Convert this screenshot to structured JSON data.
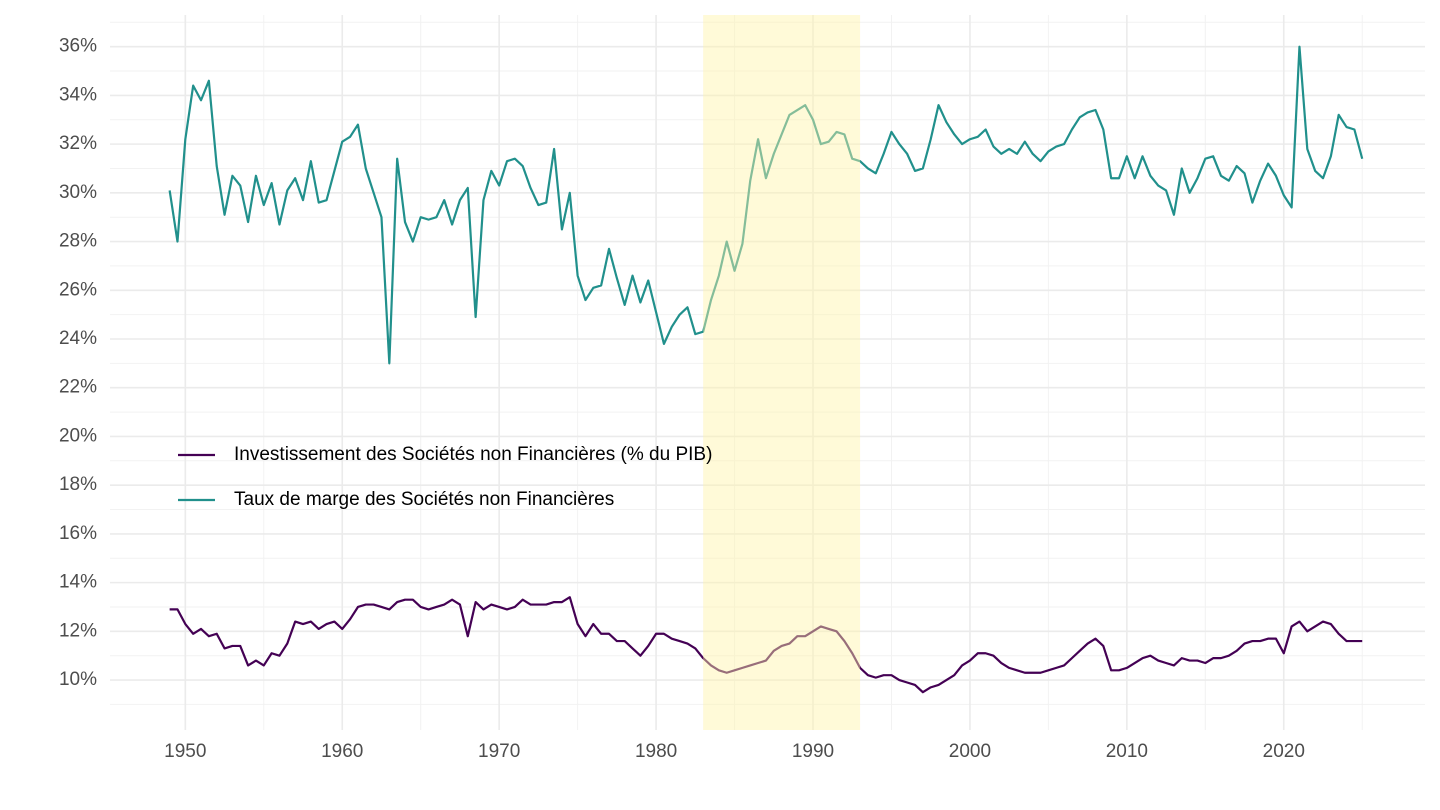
{
  "chart_data": {
    "type": "line",
    "x": [
      1949,
      1949.5,
      1950,
      1950.5,
      1951,
      1951.5,
      1952,
      1952.5,
      1953,
      1953.5,
      1954,
      1954.5,
      1955,
      1955.5,
      1956,
      1956.5,
      1957,
      1957.5,
      1958,
      1958.5,
      1959,
      1959.5,
      1960,
      1960.5,
      1961,
      1961.5,
      1962,
      1962.5,
      1963,
      1963.5,
      1964,
      1964.5,
      1965,
      1965.5,
      1966,
      1966.5,
      1967,
      1967.5,
      1968,
      1968.5,
      1969,
      1969.5,
      1970,
      1970.5,
      1971,
      1971.5,
      1972,
      1972.5,
      1973,
      1973.5,
      1974,
      1974.5,
      1975,
      1975.5,
      1976,
      1976.5,
      1977,
      1977.5,
      1978,
      1978.5,
      1979,
      1979.5,
      1980,
      1980.5,
      1981,
      1981.5,
      1982,
      1982.5,
      1983,
      1983.5,
      1984,
      1984.5,
      1985,
      1985.5,
      1986,
      1986.5,
      1987,
      1987.5,
      1988,
      1988.5,
      1989,
      1989.5,
      1990,
      1990.5,
      1991,
      1991.5,
      1992,
      1992.5,
      1993,
      1993.5,
      1994,
      1994.5,
      1995,
      1995.5,
      1996,
      1996.5,
      1997,
      1997.5,
      1998,
      1998.5,
      1999,
      1999.5,
      2000,
      2000.5,
      2001,
      2001.5,
      2002,
      2002.5,
      2003,
      2003.5,
      2004,
      2004.5,
      2005,
      2005.5,
      2006,
      2006.5,
      2007,
      2007.5,
      2008,
      2008.5,
      2009,
      2009.5,
      2010,
      2010.5,
      2011,
      2011.5,
      2012,
      2012.5,
      2013,
      2013.5,
      2014,
      2014.5,
      2015,
      2015.5,
      2016,
      2016.5,
      2017,
      2017.5,
      2018,
      2018.5,
      2019,
      2019.5,
      2020,
      2020.5,
      2021,
      2021.5,
      2022,
      2022.5,
      2023,
      2023.5,
      2024,
      2024.5,
      2025
    ],
    "series": [
      {
        "name": "Investissement des Sociétés non Financières (% du PIB)",
        "color": "#440154",
        "values": [
          12.9,
          12.9,
          12.3,
          11.9,
          12.1,
          11.8,
          11.9,
          11.3,
          11.4,
          11.4,
          10.6,
          10.8,
          10.6,
          11.1,
          11.0,
          11.5,
          12.4,
          12.3,
          12.4,
          12.1,
          12.3,
          12.4,
          12.1,
          12.5,
          13.0,
          13.1,
          13.1,
          13.0,
          12.9,
          13.2,
          13.3,
          13.3,
          13.0,
          12.9,
          13.0,
          13.1,
          13.3,
          13.1,
          11.8,
          13.2,
          12.9,
          13.1,
          13.0,
          12.9,
          13.0,
          13.3,
          13.1,
          13.1,
          13.1,
          13.2,
          13.2,
          13.4,
          12.3,
          11.8,
          12.3,
          11.9,
          11.9,
          11.6,
          11.6,
          11.3,
          11.0,
          11.4,
          11.9,
          11.9,
          11.7,
          11.6,
          11.5,
          11.3,
          10.9,
          10.6,
          10.4,
          10.3,
          10.4,
          10.5,
          10.6,
          10.7,
          10.8,
          11.2,
          11.4,
          11.5,
          11.8,
          11.8,
          12.0,
          12.2,
          12.1,
          12.0,
          11.6,
          11.1,
          10.5,
          10.2,
          10.1,
          10.2,
          10.2,
          10.0,
          9.9,
          9.8,
          9.5,
          9.7,
          9.8,
          10.0,
          10.2,
          10.6,
          10.8,
          11.1,
          11.1,
          11.0,
          10.7,
          10.5,
          10.4,
          10.3,
          10.3,
          10.3,
          10.4,
          10.5,
          10.6,
          10.9,
          11.2,
          11.5,
          11.7,
          11.4,
          10.4,
          10.4,
          10.5,
          10.7,
          10.9,
          11.0,
          10.8,
          10.7,
          10.6,
          10.9,
          10.8,
          10.8,
          10.7,
          10.9,
          10.9,
          11.0,
          11.2,
          11.5,
          11.6,
          11.6,
          11.7,
          11.7,
          11.1,
          12.2,
          12.4,
          12.0,
          12.2,
          12.4,
          12.3,
          11.9,
          11.6,
          11.6,
          11.6
        ]
      },
      {
        "name": "Taux de marge des Sociétés non Financières",
        "color": "#21908c",
        "values": [
          30.1,
          28.0,
          32.2,
          34.4,
          33.8,
          34.6,
          31.1,
          29.1,
          30.7,
          30.3,
          28.8,
          30.7,
          29.5,
          30.4,
          28.7,
          30.1,
          30.6,
          29.7,
          31.3,
          29.6,
          29.7,
          30.9,
          32.1,
          32.3,
          32.8,
          31.0,
          30.0,
          29.0,
          23.0,
          31.4,
          28.8,
          28.0,
          29.0,
          28.9,
          29.0,
          29.7,
          28.7,
          29.7,
          30.2,
          24.9,
          29.7,
          30.9,
          30.3,
          31.3,
          31.4,
          31.1,
          30.2,
          29.5,
          29.6,
          31.8,
          28.5,
          30.0,
          26.6,
          25.6,
          26.1,
          26.2,
          27.7,
          26.5,
          25.4,
          26.6,
          25.5,
          26.4,
          25.1,
          23.8,
          24.5,
          25.0,
          25.3,
          24.2,
          24.3,
          25.6,
          26.6,
          28.0,
          26.8,
          27.9,
          30.5,
          32.2,
          30.6,
          31.6,
          32.4,
          33.2,
          33.4,
          33.6,
          33.0,
          32.0,
          32.1,
          32.5,
          32.4,
          31.4,
          31.3,
          31.0,
          30.8,
          31.6,
          32.5,
          32.0,
          31.6,
          30.9,
          31.0,
          32.2,
          33.6,
          32.9,
          32.4,
          32.0,
          32.2,
          32.3,
          32.6,
          31.9,
          31.6,
          31.8,
          31.6,
          32.1,
          31.6,
          31.3,
          31.7,
          31.9,
          32.0,
          32.6,
          33.1,
          33.3,
          33.4,
          32.6,
          30.6,
          30.6,
          31.5,
          30.6,
          31.5,
          30.7,
          30.3,
          30.1,
          29.1,
          31.0,
          30.0,
          30.6,
          31.4,
          31.5,
          30.7,
          30.5,
          31.1,
          30.8,
          29.6,
          30.5,
          31.2,
          30.7,
          29.9,
          29.4,
          36.0,
          31.8,
          30.9,
          30.6,
          31.5,
          33.2,
          32.7,
          32.6,
          31.4
        ]
      }
    ],
    "xlim": [
      1945.2,
      2029
    ],
    "xticks": [
      1950,
      1960,
      1970,
      1980,
      1990,
      2000,
      2010,
      2020
    ],
    "ylim": [
      7.95,
      37.3
    ],
    "yticks": [
      {
        "value": 10,
        "label": "10%"
      },
      {
        "value": 12,
        "label": "12%"
      },
      {
        "value": 14,
        "label": "14%"
      },
      {
        "value": 16,
        "label": "16%"
      },
      {
        "value": 18,
        "label": "18%"
      },
      {
        "value": 20,
        "label": "20%"
      },
      {
        "value": 22,
        "label": "22%"
      },
      {
        "value": 24,
        "label": "24%"
      },
      {
        "value": 26,
        "label": "26%"
      },
      {
        "value": 28,
        "label": "28%"
      },
      {
        "value": 30,
        "label": "30%"
      },
      {
        "value": 32,
        "label": "32%"
      },
      {
        "value": 34,
        "label": "34%"
      },
      {
        "value": 36,
        "label": "36%"
      }
    ],
    "grid": true,
    "highlight": {
      "x": [
        1983,
        1993
      ],
      "color": "#fff3a8"
    },
    "legend_position": "middle-left"
  }
}
